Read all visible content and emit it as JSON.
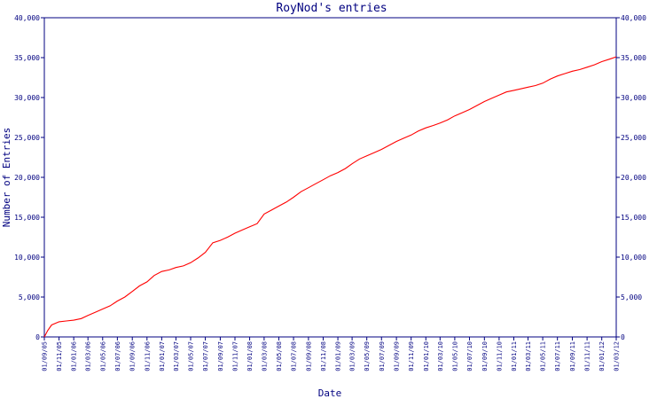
{
  "chart_data": {
    "type": "line",
    "title": "RoyNod's entries",
    "xlabel": "Date",
    "ylabel": "Number of Entries",
    "ylim": [
      0,
      40000
    ],
    "y_ticks": [
      0,
      5000,
      10000,
      15000,
      20000,
      25000,
      30000,
      35000,
      40000
    ],
    "y_tick_labels": [
      "0",
      "5,000",
      "10,000",
      "15,000",
      "20,000",
      "25,000",
      "30,000",
      "35,000",
      "40,000"
    ],
    "x_tick_labels": [
      "01/09/05",
      "01/11/05",
      "01/01/06",
      "01/03/06",
      "01/05/06",
      "01/07/06",
      "01/09/06",
      "01/11/06",
      "01/01/07",
      "01/03/07",
      "01/05/07",
      "01/07/07",
      "01/09/07",
      "01/11/07",
      "01/01/08",
      "01/03/08",
      "01/05/08",
      "01/07/08",
      "01/09/08",
      "01/11/08",
      "01/01/09",
      "01/03/09",
      "01/05/09",
      "01/07/09",
      "01/09/09",
      "01/11/09",
      "01/01/10",
      "01/03/10",
      "01/05/10",
      "01/07/10",
      "01/09/10",
      "01/11/10",
      "01/01/11",
      "01/03/11",
      "01/05/11",
      "01/07/11",
      "01/09/11",
      "01/11/11",
      "01/01/12",
      "01/03/12"
    ],
    "grid": false,
    "line_color": "#ff0000",
    "axis_color": "#000080",
    "series": [
      {
        "x": [
          "01/09/05",
          "15/09/05",
          "01/10/05",
          "01/11/05",
          "01/12/05",
          "01/01/06",
          "01/02/06",
          "01/03/06",
          "01/04/06",
          "01/05/06",
          "01/06/06",
          "01/07/06",
          "01/08/06",
          "01/09/06",
          "01/10/06",
          "01/11/06",
          "01/12/06",
          "01/01/07",
          "01/02/07",
          "01/03/07",
          "01/04/07",
          "01/05/07",
          "01/06/07",
          "01/07/07",
          "01/08/07",
          "01/09/07",
          "01/10/07",
          "01/11/07",
          "01/12/07",
          "01/01/08",
          "01/02/08",
          "01/03/08",
          "01/04/08",
          "01/05/08",
          "01/06/08",
          "01/07/08",
          "01/08/08",
          "01/09/08",
          "01/10/08",
          "01/11/08",
          "01/12/08",
          "01/01/09",
          "01/02/09",
          "01/03/09",
          "01/04/09",
          "01/05/09",
          "01/06/09",
          "01/07/09",
          "01/08/09",
          "01/09/09",
          "01/10/09",
          "01/11/09",
          "01/12/09",
          "01/01/10",
          "01/02/10",
          "01/03/10",
          "01/04/10",
          "01/05/10",
          "01/06/10",
          "01/07/10",
          "01/08/10",
          "01/09/10",
          "01/10/10",
          "01/11/10",
          "01/12/10",
          "01/01/11",
          "01/02/11",
          "01/03/11",
          "01/04/11",
          "01/05/11",
          "01/06/11",
          "01/07/11",
          "01/08/11",
          "01/09/11",
          "01/10/11",
          "01/11/11",
          "01/12/11",
          "01/01/12",
          "01/02/12",
          "01/03/12"
        ],
        "values": [
          0,
          800,
          1500,
          1900,
          2000,
          2100,
          2300,
          2700,
          3100,
          3500,
          3900,
          4500,
          5000,
          5700,
          6400,
          6900,
          7700,
          8200,
          8400,
          8700,
          8900,
          9300,
          9900,
          10600,
          11800,
          12100,
          12500,
          13000,
          13400,
          13800,
          14200,
          15400,
          15900,
          16400,
          16900,
          17500,
          18200,
          18700,
          19200,
          19700,
          20200,
          20600,
          21100,
          21700,
          22300,
          22700,
          23100,
          23500,
          24000,
          24500,
          24900,
          25300,
          25800,
          26200,
          26500,
          26800,
          27200,
          27700,
          28100,
          28500,
          29000,
          29500,
          29900,
          30300,
          30700,
          30900,
          31100,
          31300,
          31500,
          31800,
          32300,
          32700,
          33000,
          33300,
          33500,
          33800,
          34100,
          34500,
          34800,
          35100
        ]
      }
    ]
  }
}
